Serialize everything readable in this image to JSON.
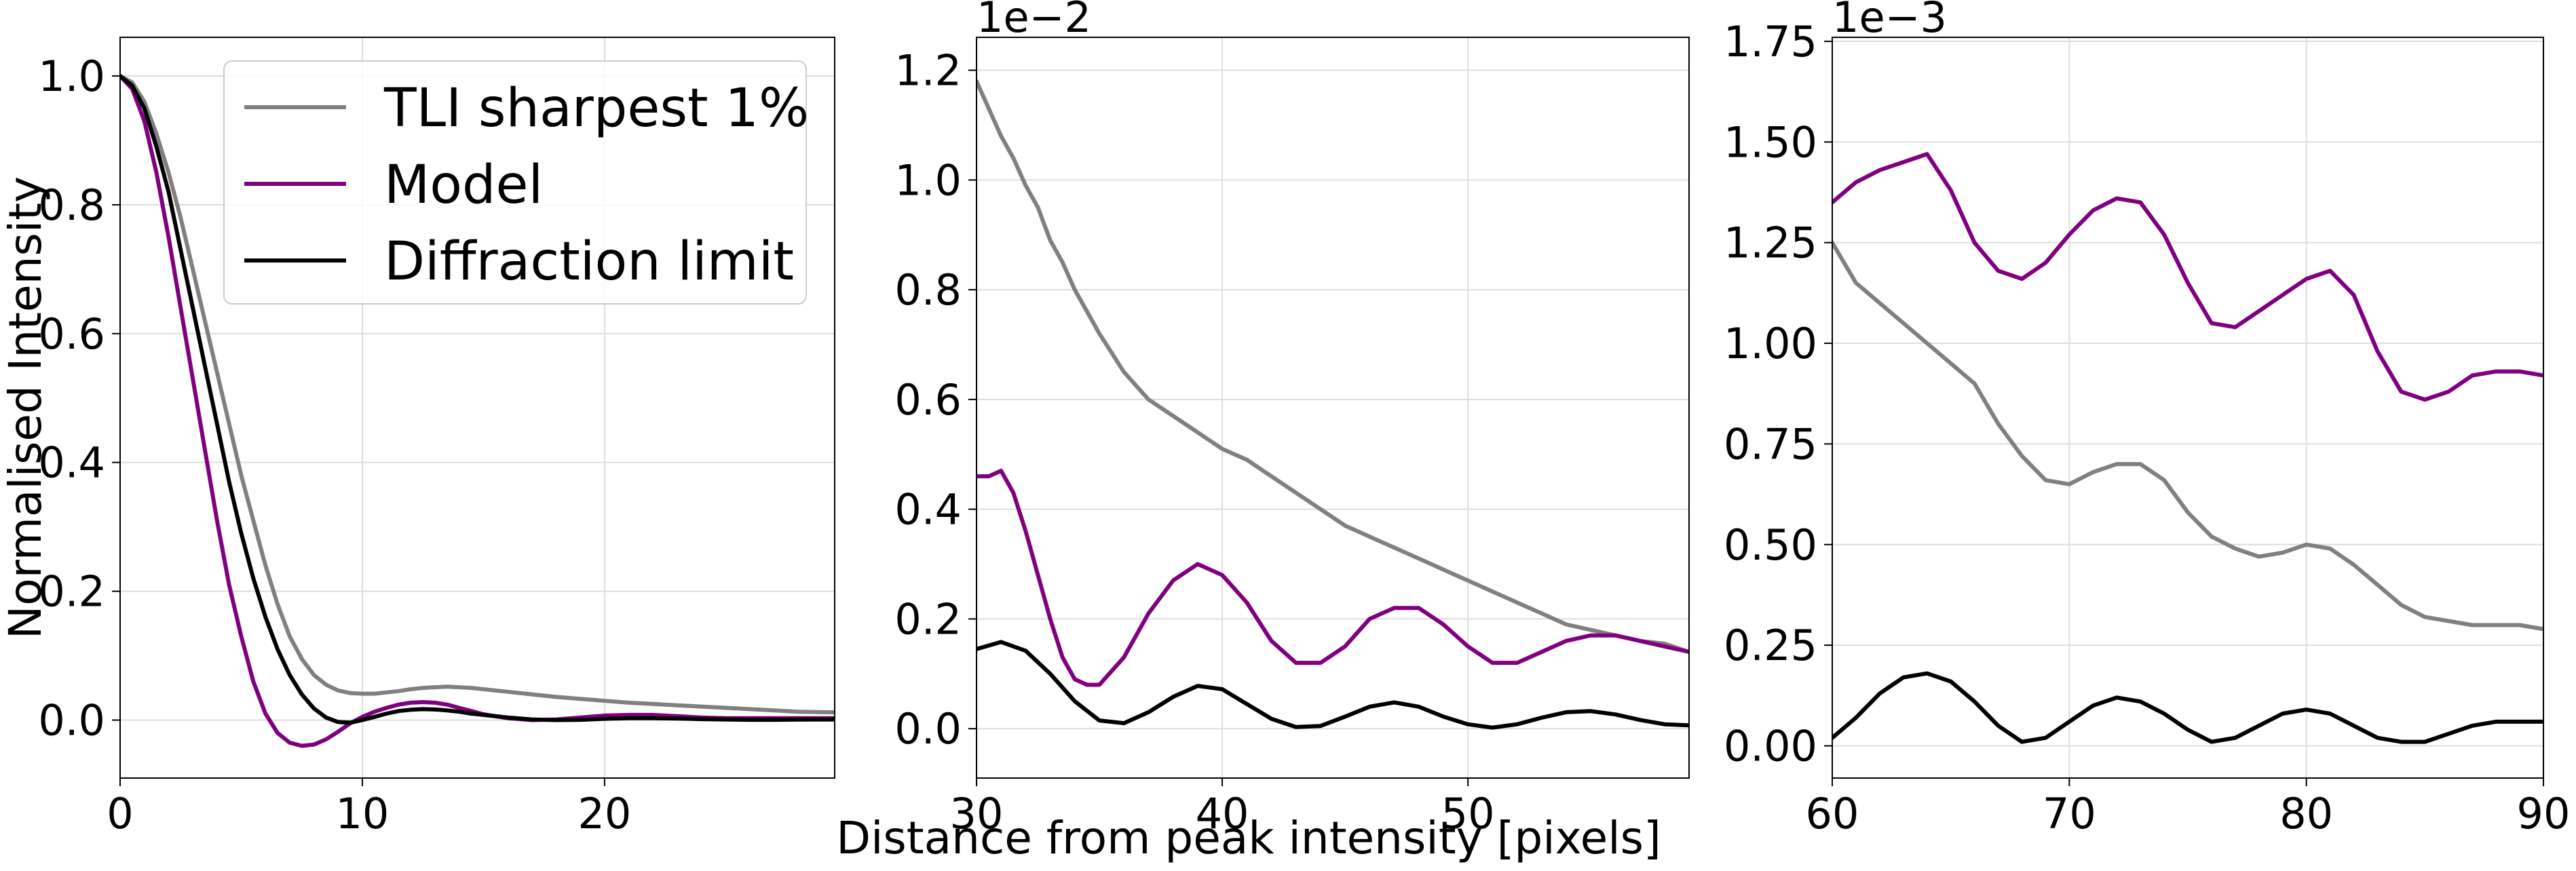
{
  "figure": {
    "xlabel": "Distance from peak intensity [pixels]",
    "colors": {
      "tli": "#808080",
      "model": "#800080",
      "diffraction": "#000000",
      "grid": "#dddddd",
      "axis": "#000000"
    }
  },
  "chart_data": [
    {
      "type": "line",
      "title": "",
      "xlabel": "",
      "ylabel": "Normalised Intensity",
      "xlim": [
        0,
        29.5
      ],
      "ylim": [
        -0.09,
        1.06
      ],
      "xticks": [
        0,
        10,
        20
      ],
      "xtick_labels": [
        "0",
        "10",
        "20"
      ],
      "yticks": [
        0.0,
        0.2,
        0.4,
        0.6,
        0.8,
        1.0
      ],
      "ytick_labels": [
        "0.0",
        "0.2",
        "0.4",
        "0.6",
        "0.8",
        "1.0"
      ],
      "offset_text": "",
      "grid": true,
      "legend": {
        "location": "top-right",
        "entries": [
          "TLI sharpest 1%",
          "Model",
          "Diffraction limit"
        ]
      },
      "series": [
        {
          "name": "TLI sharpest 1%",
          "color": "#808080",
          "x": [
            0,
            0.5,
            1,
            1.5,
            2,
            2.5,
            3,
            3.5,
            4,
            4.5,
            5,
            5.5,
            6,
            6.5,
            7,
            7.5,
            8,
            8.5,
            9,
            9.5,
            10,
            10.5,
            11,
            11.5,
            12,
            12.5,
            13,
            13.5,
            14,
            14.5,
            15,
            16,
            17,
            18,
            19,
            20,
            21,
            22,
            23,
            24,
            25,
            26,
            27,
            28,
            29.5
          ],
          "y": [
            1.0,
            0.99,
            0.96,
            0.91,
            0.85,
            0.78,
            0.7,
            0.62,
            0.54,
            0.46,
            0.38,
            0.31,
            0.24,
            0.18,
            0.13,
            0.095,
            0.07,
            0.055,
            0.046,
            0.042,
            0.041,
            0.041,
            0.043,
            0.045,
            0.048,
            0.05,
            0.051,
            0.052,
            0.051,
            0.05,
            0.048,
            0.044,
            0.04,
            0.036,
            0.033,
            0.03,
            0.027,
            0.025,
            0.023,
            0.021,
            0.019,
            0.017,
            0.015,
            0.013,
            0.012
          ]
        },
        {
          "name": "Model",
          "color": "#800080",
          "x": [
            0,
            0.5,
            1,
            1.5,
            2,
            2.5,
            3,
            3.5,
            4,
            4.5,
            5,
            5.5,
            6,
            6.5,
            7,
            7.5,
            8,
            8.5,
            9,
            9.5,
            10,
            10.5,
            11,
            11.5,
            12,
            12.5,
            13,
            13.5,
            14,
            14.5,
            15,
            16,
            17,
            18,
            19,
            20,
            21,
            22,
            23,
            24,
            25,
            26,
            27,
            28,
            29.5
          ],
          "y": [
            1.0,
            0.98,
            0.93,
            0.85,
            0.75,
            0.64,
            0.53,
            0.42,
            0.31,
            0.21,
            0.13,
            0.06,
            0.01,
            -0.02,
            -0.035,
            -0.04,
            -0.038,
            -0.03,
            -0.018,
            -0.005,
            0.005,
            0.013,
            0.019,
            0.024,
            0.027,
            0.028,
            0.027,
            0.024,
            0.019,
            0.014,
            0.009,
            0.003,
            0.0,
            0.001,
            0.004,
            0.007,
            0.008,
            0.008,
            0.006,
            0.004,
            0.003,
            0.003,
            0.003,
            0.003,
            0.003
          ]
        },
        {
          "name": "Diffraction limit",
          "color": "#000000",
          "x": [
            0,
            0.5,
            1,
            1.5,
            2,
            2.5,
            3,
            3.5,
            4,
            4.5,
            5,
            5.5,
            6,
            6.5,
            7,
            7.5,
            8,
            8.5,
            9,
            9.5,
            10,
            10.5,
            11,
            11.5,
            12,
            12.5,
            13,
            13.5,
            14,
            14.5,
            15,
            16,
            17,
            18,
            19,
            20,
            21,
            22,
            23,
            24,
            25,
            26,
            27,
            28,
            29.5
          ],
          "y": [
            1.0,
            0.985,
            0.95,
            0.89,
            0.82,
            0.73,
            0.64,
            0.55,
            0.46,
            0.37,
            0.29,
            0.22,
            0.16,
            0.11,
            0.07,
            0.04,
            0.018,
            0.004,
            -0.003,
            -0.004,
            0.0,
            0.005,
            0.01,
            0.014,
            0.016,
            0.017,
            0.0165,
            0.015,
            0.013,
            0.01,
            0.008,
            0.004,
            0.001,
            0.0,
            0.0005,
            0.002,
            0.003,
            0.003,
            0.0025,
            0.0015,
            0.001,
            0.0005,
            0.0005,
            0.0008,
            0.001
          ]
        }
      ]
    },
    {
      "type": "line",
      "title": "",
      "xlabel": "",
      "ylabel": "",
      "xlim": [
        30,
        59
      ],
      "ylim": [
        -0.0009,
        0.0126
      ],
      "xticks": [
        30,
        40,
        50
      ],
      "xtick_labels": [
        "30",
        "40",
        "50"
      ],
      "yticks": [
        0.0,
        0.002,
        0.004,
        0.006,
        0.008,
        0.01,
        0.012
      ],
      "ytick_labels": [
        "0.0",
        "0.2",
        "0.4",
        "0.6",
        "0.8",
        "1.0",
        "1.2"
      ],
      "offset_text": "1e−2",
      "grid": true,
      "series": [
        {
          "name": "TLI sharpest 1%",
          "color": "#808080",
          "x": [
            30,
            30.5,
            31,
            31.5,
            32,
            32.5,
            33,
            33.5,
            34,
            34.5,
            35,
            36,
            37,
            38,
            39,
            40,
            41,
            42,
            43,
            44,
            45,
            46,
            47,
            48,
            49,
            50,
            51,
            52,
            53,
            54,
            55,
            56,
            57,
            58,
            59
          ],
          "y": [
            0.0118,
            0.0113,
            0.0108,
            0.0104,
            0.0099,
            0.0095,
            0.0089,
            0.0085,
            0.008,
            0.0076,
            0.0072,
            0.0065,
            0.006,
            0.0057,
            0.0054,
            0.0051,
            0.0049,
            0.0046,
            0.0043,
            0.004,
            0.0037,
            0.0035,
            0.0033,
            0.0031,
            0.0029,
            0.0027,
            0.0025,
            0.0023,
            0.0021,
            0.0019,
            0.0018,
            0.0017,
            0.0016,
            0.00155,
            0.0014
          ]
        },
        {
          "name": "Model",
          "color": "#800080",
          "x": [
            30,
            30.5,
            31,
            31.5,
            32,
            32.5,
            33,
            33.5,
            34,
            34.5,
            35,
            36,
            37,
            38,
            39,
            40,
            41,
            42,
            43,
            44,
            45,
            46,
            47,
            48,
            49,
            50,
            51,
            52,
            53,
            54,
            55,
            56,
            57,
            58,
            59
          ],
          "y": [
            0.0046,
            0.0046,
            0.0047,
            0.0043,
            0.0036,
            0.0028,
            0.002,
            0.0013,
            0.0009,
            0.0008,
            0.0008,
            0.0013,
            0.0021,
            0.0027,
            0.003,
            0.0028,
            0.0023,
            0.0016,
            0.0012,
            0.0012,
            0.0015,
            0.002,
            0.0022,
            0.0022,
            0.0019,
            0.0015,
            0.0012,
            0.0012,
            0.0014,
            0.0016,
            0.0017,
            0.0017,
            0.0016,
            0.0015,
            0.0014
          ]
        },
        {
          "name": "Diffraction limit",
          "color": "#000000",
          "x": [
            30,
            31,
            32,
            33,
            34,
            35,
            36,
            37,
            38,
            39,
            40,
            41,
            42,
            43,
            44,
            45,
            46,
            47,
            48,
            49,
            50,
            51,
            52,
            53,
            54,
            55,
            56,
            57,
            58,
            59
          ],
          "y": [
            0.00145,
            0.00158,
            0.00142,
            0.001,
            0.0005,
            0.00015,
            0.0001,
            0.0003,
            0.00058,
            0.00078,
            0.00072,
            0.00045,
            0.00018,
            3e-05,
            5e-05,
            0.00022,
            0.0004,
            0.00048,
            0.0004,
            0.00022,
            8e-05,
            2e-05,
            8e-05,
            0.0002,
            0.0003,
            0.00032,
            0.00026,
            0.00016,
            8e-05,
            6e-05
          ]
        }
      ]
    },
    {
      "type": "line",
      "title": "",
      "xlabel": "",
      "ylabel": "",
      "xlim": [
        60,
        90
      ],
      "ylim": [
        -8e-05,
        0.00176
      ],
      "xticks": [
        60,
        70,
        80,
        90
      ],
      "xtick_labels": [
        "60",
        "70",
        "80",
        "90"
      ],
      "yticks": [
        0.0,
        0.00025,
        0.0005,
        0.00075,
        0.001,
        0.00125,
        0.0015,
        0.00175
      ],
      "ytick_labels": [
        "0.00",
        "0.25",
        "0.50",
        "0.75",
        "1.00",
        "1.25",
        "1.50",
        "1.75"
      ],
      "offset_text": "1e−3",
      "grid": true,
      "series": [
        {
          "name": "TLI sharpest 1%",
          "color": "#808080",
          "x": [
            60,
            61,
            62,
            63,
            64,
            65,
            66,
            67,
            68,
            69,
            70,
            71,
            72,
            73,
            74,
            75,
            76,
            77,
            78,
            79,
            80,
            81,
            82,
            83,
            84,
            85,
            86,
            87,
            88,
            89,
            90
          ],
          "y": [
            0.00125,
            0.00115,
            0.0011,
            0.00105,
            0.001,
            0.00095,
            0.0009,
            0.0008,
            0.00072,
            0.00066,
            0.00065,
            0.00068,
            0.0007,
            0.0007,
            0.00066,
            0.00058,
            0.00052,
            0.00049,
            0.00047,
            0.00048,
            0.0005,
            0.00049,
            0.00045,
            0.0004,
            0.00035,
            0.00032,
            0.00031,
            0.0003,
            0.0003,
            0.0003,
            0.00029
          ]
        },
        {
          "name": "Model",
          "color": "#800080",
          "x": [
            60,
            61,
            62,
            63,
            64,
            65,
            66,
            67,
            68,
            69,
            70,
            71,
            72,
            73,
            74,
            75,
            76,
            77,
            78,
            79,
            80,
            81,
            82,
            83,
            84,
            85,
            86,
            87,
            88,
            89,
            90
          ],
          "y": [
            0.00135,
            0.0014,
            0.00143,
            0.00145,
            0.00147,
            0.00138,
            0.00125,
            0.00118,
            0.00116,
            0.0012,
            0.00127,
            0.00133,
            0.00136,
            0.00135,
            0.00127,
            0.00115,
            0.00105,
            0.00104,
            0.00108,
            0.00112,
            0.00116,
            0.00118,
            0.00112,
            0.00098,
            0.00088,
            0.00086,
            0.00088,
            0.00092,
            0.00093,
            0.00093,
            0.00092
          ]
        },
        {
          "name": "Diffraction limit",
          "color": "#000000",
          "x": [
            60,
            61,
            62,
            63,
            64,
            65,
            66,
            67,
            68,
            69,
            70,
            71,
            72,
            73,
            74,
            75,
            76,
            77,
            78,
            79,
            80,
            81,
            82,
            83,
            84,
            85,
            86,
            87,
            88,
            89,
            90
          ],
          "y": [
            2e-05,
            7e-05,
            0.00013,
            0.00017,
            0.00018,
            0.00016,
            0.00011,
            5e-05,
            1e-05,
            2e-05,
            6e-05,
            0.0001,
            0.00012,
            0.00011,
            8e-05,
            4e-05,
            1e-05,
            2e-05,
            5e-05,
            8e-05,
            9e-05,
            8e-05,
            5e-05,
            2e-05,
            1e-05,
            1e-05,
            3e-05,
            5e-05,
            6e-05,
            6e-05,
            6e-05
          ]
        }
      ]
    }
  ]
}
